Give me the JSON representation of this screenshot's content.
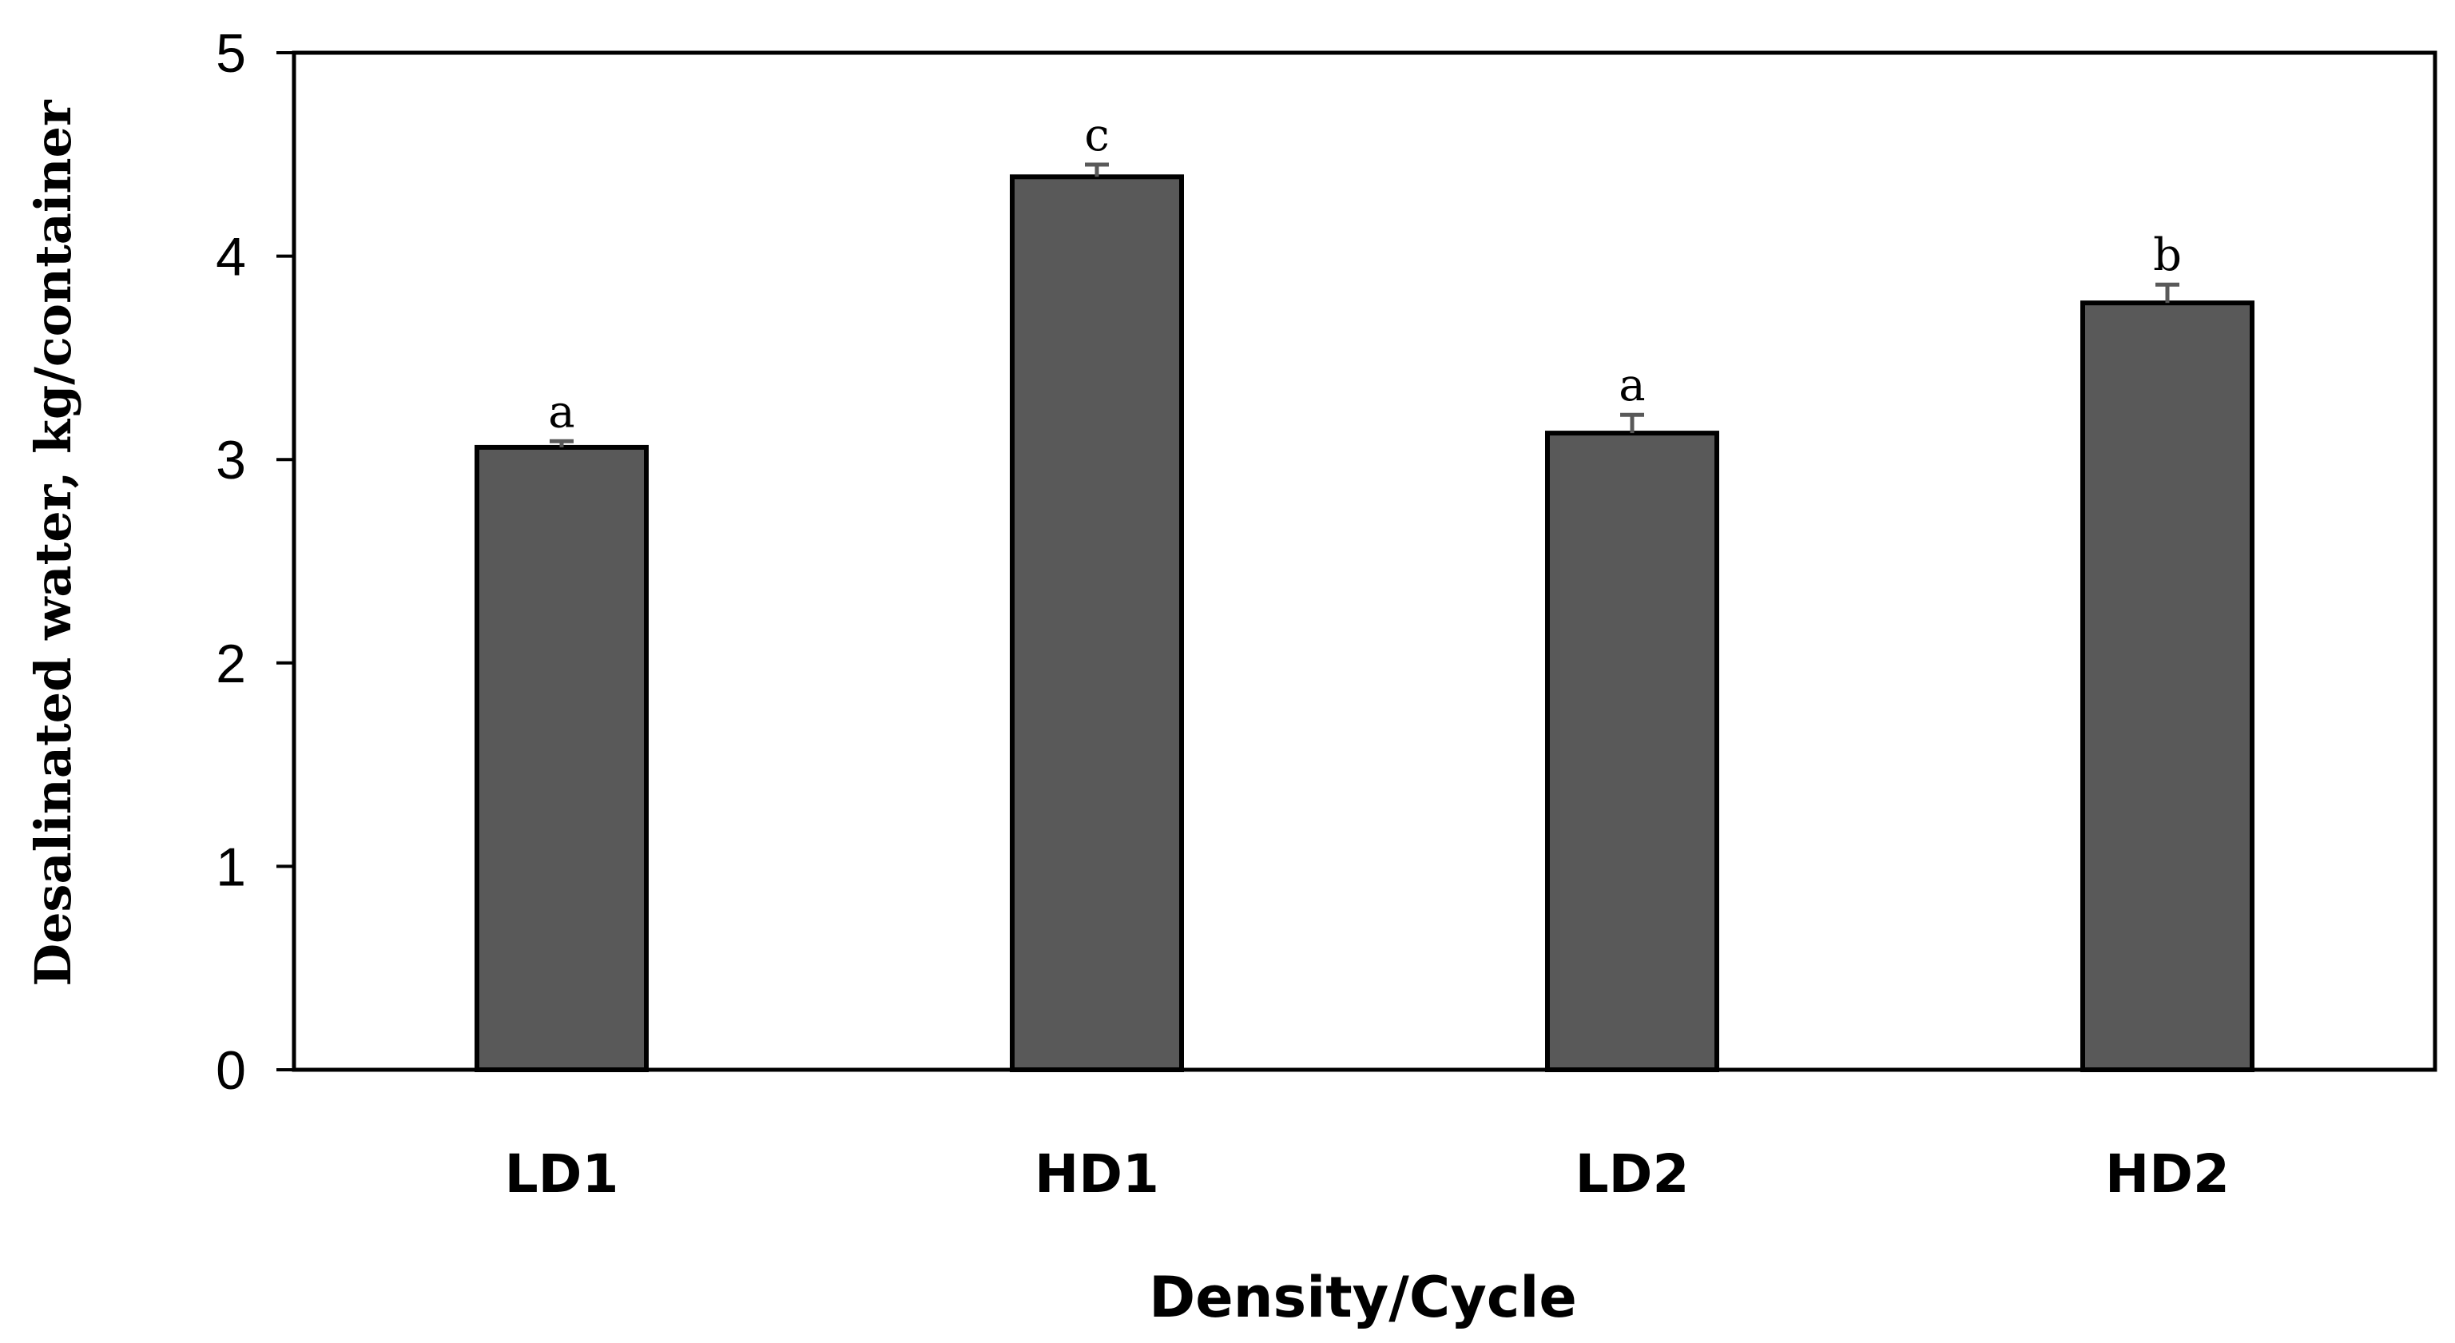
{
  "chart_data": {
    "type": "bar",
    "categories": [
      "LD1",
      "HD1",
      "LD2",
      "HD2"
    ],
    "values": [
      3.06,
      4.39,
      3.13,
      3.77
    ],
    "errors": [
      0.03,
      0.06,
      0.09,
      0.09
    ],
    "significance": [
      "a",
      "c",
      "a",
      "b"
    ],
    "title": "",
    "xlabel": "Density/Cycle",
    "ylabel": "Desalinated water, kg/container",
    "ylim": [
      0,
      5
    ],
    "yticks": [
      0,
      1,
      2,
      3,
      4,
      5
    ],
    "grid": false,
    "bar_color": "#595959",
    "edge_color": "#000000"
  }
}
